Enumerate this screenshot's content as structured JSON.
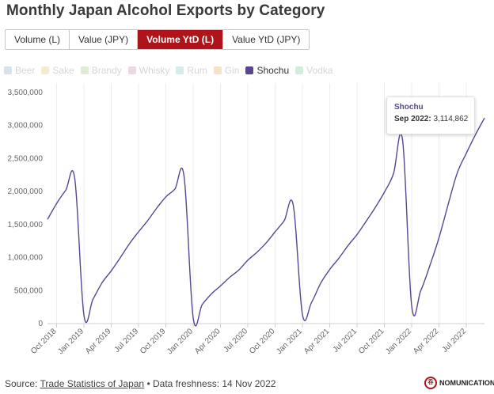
{
  "title": "Monthly Japan Alcohol Exports by Category",
  "tabs": [
    {
      "label": "Volume (L)",
      "active": false
    },
    {
      "label": "Value (JPY)",
      "active": false
    },
    {
      "label": "Volume YtD (L)",
      "active": true
    },
    {
      "label": "Value YtD (JPY)",
      "active": false
    }
  ],
  "legend": [
    {
      "label": "Beer",
      "color": "#d8e2ec",
      "active": false
    },
    {
      "label": "Sake",
      "color": "#f5ecd0",
      "active": false
    },
    {
      "label": "Brandy",
      "color": "#e0ecd8",
      "active": false
    },
    {
      "label": "Whisky",
      "color": "#ecd8e4",
      "active": false
    },
    {
      "label": "Rum",
      "color": "#d4ecec",
      "active": false
    },
    {
      "label": "Gin",
      "color": "#f5e2c8",
      "active": false
    },
    {
      "label": "Shochu",
      "color": "#5a4591",
      "active": true
    },
    {
      "label": "Vodka",
      "color": "#d4ecdc",
      "active": false
    }
  ],
  "tooltip": {
    "series": "Shochu",
    "date_label": "Sep 2022:",
    "value": "3,114,862"
  },
  "footer": {
    "source_prefix": "Source:",
    "source_link": "Trade Statistics of Japan",
    "freshness": "• Data freshness: 14 Nov 2022"
  },
  "logo": {
    "text": "NOMUNICATION",
    "mark": "呑"
  },
  "chart_data": {
    "type": "line",
    "x": [
      "Sep 2018",
      "Oct 2018",
      "Nov 2018",
      "Dec 2018",
      "Jan 2019",
      "Feb 2019",
      "Mar 2019",
      "Apr 2019",
      "May 2019",
      "Jun 2019",
      "Jul 2019",
      "Aug 2019",
      "Sep 2019",
      "Oct 2019",
      "Nov 2019",
      "Dec 2019",
      "Jan 2020",
      "Feb 2020",
      "Mar 2020",
      "Apr 2020",
      "May 2020",
      "Jun 2020",
      "Jul 2020",
      "Aug 2020",
      "Sep 2020",
      "Oct 2020",
      "Nov 2020",
      "Dec 2020",
      "Jan 2021",
      "Feb 2021",
      "Mar 2021",
      "Apr 2021",
      "May 2021",
      "Jun 2021",
      "Jul 2021",
      "Aug 2021",
      "Sep 2021",
      "Oct 2021",
      "Nov 2021",
      "Dec 2021",
      "Jan 2022",
      "Feb 2022",
      "Mar 2022",
      "Apr 2022",
      "May 2022",
      "Jun 2022",
      "Jul 2022",
      "Aug 2022",
      "Sep 2022"
    ],
    "x_ticks": [
      "Oct 2018",
      "Jan 2019",
      "Apr 2019",
      "Jul 2019",
      "Oct 2019",
      "Jan 2020",
      "Apr 2020",
      "Jul 2020",
      "Oct 2020",
      "Jan 2021",
      "Apr 2021",
      "Jul 2021",
      "Oct 2021",
      "Jan 2022",
      "Apr 2022",
      "Jul 2022"
    ],
    "series": [
      {
        "name": "Shochu",
        "color": "#5a4591",
        "values": [
          1580000,
          1820000,
          2020000,
          2190000,
          130000,
          370000,
          620000,
          800000,
          1000000,
          1210000,
          1390000,
          1560000,
          1750000,
          1920000,
          2040000,
          2230000,
          90000,
          290000,
          450000,
          570000,
          700000,
          810000,
          960000,
          1080000,
          1220000,
          1390000,
          1560000,
          1790000,
          140000,
          320000,
          610000,
          820000,
          990000,
          1180000,
          1350000,
          1550000,
          1760000,
          1990000,
          2270000,
          2780000,
          270000,
          500000,
          880000,
          1300000,
          1800000,
          2280000,
          2580000,
          2860000,
          3114862
        ]
      }
    ],
    "ylim": [
      0,
      3500000
    ],
    "y_ticks": [
      0,
      500000,
      1000000,
      1500000,
      2000000,
      2500000,
      3000000,
      3500000
    ],
    "y_tick_labels": [
      "0",
      "500,000",
      "1,000,000",
      "1,500,000",
      "2,000,000",
      "2,500,000",
      "3,000,000",
      "3,500,000"
    ],
    "grid": "vertical"
  }
}
